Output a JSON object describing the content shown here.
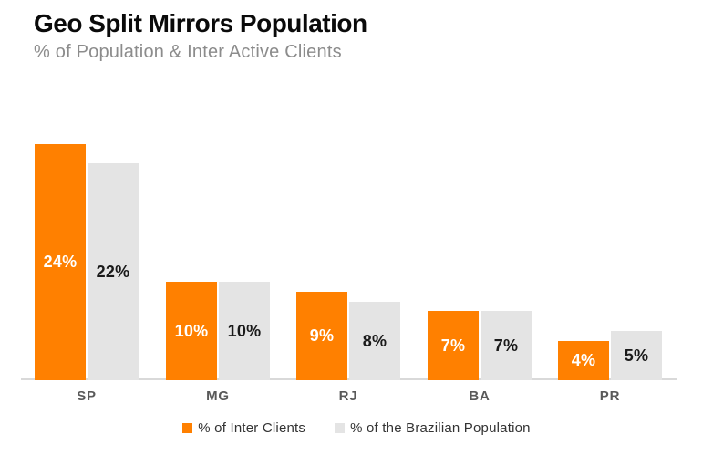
{
  "page": {
    "background": "#FFFFFF"
  },
  "chart_data": {
    "type": "bar",
    "title": "Geo Split Mirrors Population",
    "subtitle": "% of Population & Inter Active Clients",
    "categories": [
      "SP",
      "MG",
      "RJ",
      "BA",
      "PR"
    ],
    "series": [
      {
        "name": "% of Inter Clients",
        "color": "#FF8000",
        "label_color": "#FFFFFF",
        "values": [
          24,
          10,
          9,
          7,
          4
        ]
      },
      {
        "name": "% of the Brazilian Population",
        "color": "#E4E4E4",
        "label_color": "#1A1A1A",
        "values": [
          22,
          10,
          8,
          7,
          5
        ]
      }
    ],
    "value_suffix": "%",
    "ylim": [
      0,
      25
    ],
    "grid": false,
    "legend_position": "bottom",
    "colors": {
      "axis_line": "#D9D9D9",
      "title": "#0A0A0A",
      "subtitle": "#8C8C8C",
      "category_label": "#595959",
      "legend_text": "#333333"
    }
  }
}
